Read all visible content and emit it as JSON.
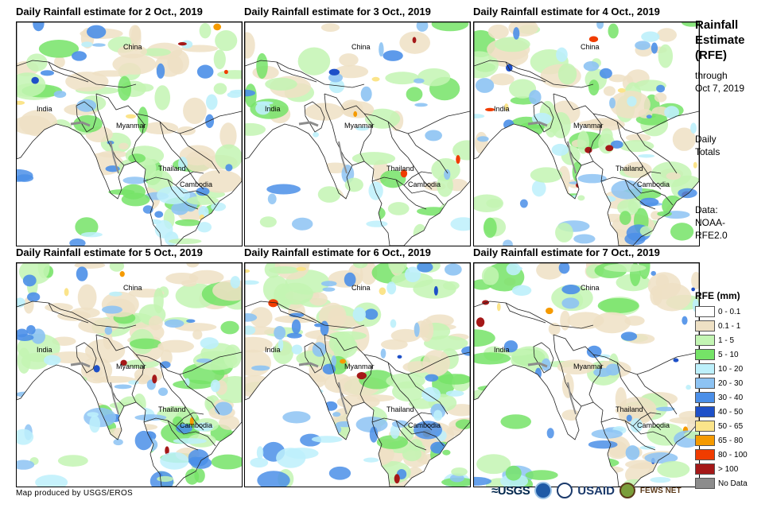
{
  "panels": [
    {
      "title": "Daily Rainfall estimate for 2 Oct., 2019",
      "intensity": 1.0,
      "seed": 11
    },
    {
      "title": "Daily Rainfall estimate for 3 Oct., 2019",
      "intensity": 0.55,
      "seed": 23
    },
    {
      "title": "Daily Rainfall estimate for 4 Oct., 2019",
      "intensity": 1.25,
      "seed": 37
    },
    {
      "title": "Daily Rainfall estimate for 5 Oct., 2019",
      "intensity": 1.3,
      "seed": 41
    },
    {
      "title": "Daily Rainfall estimate for 6 Oct., 2019",
      "intensity": 1.5,
      "seed": 53
    },
    {
      "title": "Daily Rainfall estimate for 7 Oct., 2019",
      "intensity": 1.0,
      "seed": 67
    }
  ],
  "country_labels": {
    "china": "China",
    "india": "India",
    "myanmar": "Myanmar",
    "thailand": "Thailand",
    "cambodia": "Cambodia"
  },
  "side": {
    "title_line1": "Rainfall",
    "title_line2": "Estimate",
    "title_line3": "(RFE)",
    "through_line1": "through",
    "through_line2": "Oct 7, 2019",
    "totals_line1": "Daily",
    "totals_line2": "Totals",
    "data_line1": "Data:",
    "data_line2": "NOAA-",
    "data_line3": "RFE2.0"
  },
  "legend": {
    "title": "RFE (mm)",
    "items": [
      {
        "label": "0 - 0.1",
        "color": "#ffffff"
      },
      {
        "label": "0.1 - 1",
        "color": "#eee0c4"
      },
      {
        "label": "1 - 5",
        "color": "#c3f5b3"
      },
      {
        "label": "5 - 10",
        "color": "#75e367"
      },
      {
        "label": "10 - 20",
        "color": "#bdf0fb"
      },
      {
        "label": "20 - 30",
        "color": "#8dc3f3"
      },
      {
        "label": "30 - 40",
        "color": "#4b8fe8"
      },
      {
        "label": "40 - 50",
        "color": "#1e50c8"
      },
      {
        "label": "50 - 65",
        "color": "#fbe48a"
      },
      {
        "label": "65 - 80",
        "color": "#f59a00"
      },
      {
        "label": "80 - 100",
        "color": "#f03c00"
      },
      {
        "label": "> 100",
        "color": "#a51818"
      },
      {
        "label": "No Data",
        "color": "#8c8c8c"
      }
    ]
  },
  "credit": "Map produced by USGS/EROS",
  "logos": {
    "usgs": "≈USGS",
    "usaid": "USAID",
    "fews": "FEWS NET"
  }
}
